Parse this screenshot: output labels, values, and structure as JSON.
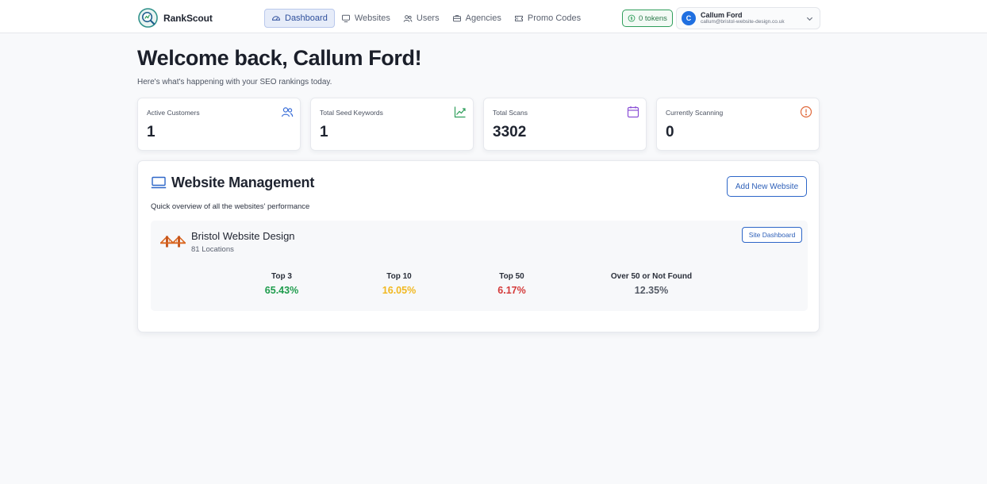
{
  "app": {
    "name": "RankScout"
  },
  "nav": {
    "items": [
      {
        "label": "Dashboard",
        "icon": "gauge-icon",
        "active": true
      },
      {
        "label": "Websites",
        "icon": "monitor-icon",
        "active": false
      },
      {
        "label": "Users",
        "icon": "users-icon",
        "active": false
      },
      {
        "label": "Agencies",
        "icon": "briefcase-icon",
        "active": false
      },
      {
        "label": "Promo Codes",
        "icon": "ticket-icon",
        "active": false
      }
    ]
  },
  "tokens": {
    "label": "0 tokens",
    "color": "#2f9e5b"
  },
  "user": {
    "initial": "C",
    "name": "Callum Ford",
    "email": "callum@bristol-website-design.co.uk"
  },
  "page": {
    "title": "Welcome back, Callum Ford!",
    "subtitle": "Here's what's happening with your SEO rankings today."
  },
  "stats": [
    {
      "label": "Active Customers",
      "value": "1",
      "icon": "users-icon",
      "color": "#3b6fd8"
    },
    {
      "label": "Total Seed Keywords",
      "value": "1",
      "icon": "trending-up-icon",
      "color": "#2f9e5b"
    },
    {
      "label": "Total Scans",
      "value": "3302",
      "icon": "calendar-icon",
      "color": "#8a4fd6"
    },
    {
      "label": "Currently Scanning",
      "value": "0",
      "icon": "alert-circle-icon",
      "color": "#e0683a"
    }
  ],
  "management": {
    "title": "Website Management",
    "subtitle": "Quick overview of all the websites' performance",
    "add_button": "Add New Website",
    "sites": [
      {
        "name": "Bristol Website Design",
        "locations": "81 Locations",
        "dashboard_button": "Site Dashboard",
        "metrics": [
          {
            "label": "Top 3",
            "value": "65.43%",
            "color": "#1e9c4c"
          },
          {
            "label": "Top 10",
            "value": "16.05%",
            "color": "#f1b820"
          },
          {
            "label": "Top 50",
            "value": "6.17%",
            "color": "#d43a3a"
          },
          {
            "label": "Over 50 or Not Found",
            "value": "12.35%",
            "color": "#555b66"
          }
        ]
      }
    ]
  }
}
